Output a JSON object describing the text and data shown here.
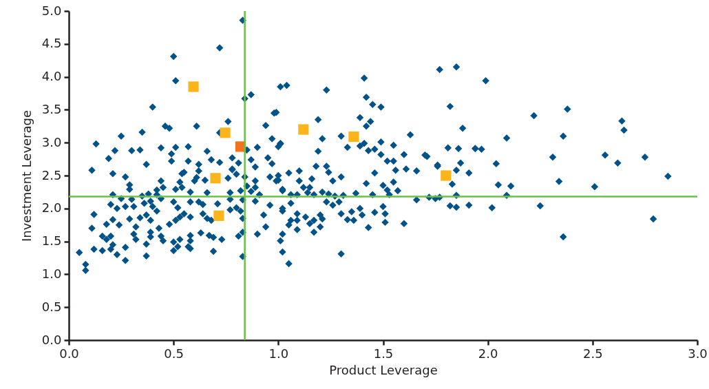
{
  "chart_data": {
    "type": "scatter",
    "xlabel": "Product Leverage",
    "ylabel": "Investment Leverage",
    "xlim": [
      0,
      3
    ],
    "ylim": [
      0,
      5
    ],
    "xticks": [
      {
        "value": 0,
        "label": "0.0"
      },
      {
        "value": 0.5,
        "label": "0.5"
      },
      {
        "value": 1,
        "label": "1.0"
      },
      {
        "value": 1.5,
        "label": "1.5"
      },
      {
        "value": 2,
        "label": "2.0"
      },
      {
        "value": 2.5,
        "label": "2.5"
      },
      {
        "value": 3,
        "label": "3.0"
      }
    ],
    "yticks": [
      {
        "value": 0,
        "label": "0.0"
      },
      {
        "value": 0.5,
        "label": "0.5"
      },
      {
        "value": 1,
        "label": "1.0"
      },
      {
        "value": 1.5,
        "label": "1.5"
      },
      {
        "value": 2,
        "label": "2.0"
      },
      {
        "value": 2.5,
        "label": "2.5"
      },
      {
        "value": 3,
        "label": "3.0"
      },
      {
        "value": 3.5,
        "label": "3.5"
      },
      {
        "value": 4,
        "label": "4.0"
      },
      {
        "value": 4.5,
        "label": "4.5"
      },
      {
        "value": 5,
        "label": "5.0"
      }
    ],
    "grid": false,
    "ref_lines": [
      {
        "axis": "x",
        "value": 0.84,
        "color": "#6abf4b"
      },
      {
        "axis": "y",
        "value": 2.18,
        "color": "#6abf4b"
      }
    ],
    "series": [
      {
        "color": "#005288",
        "marker": "diamond",
        "x": [
          2.86,
          2.79,
          2.75,
          2.64,
          2.65,
          2.62,
          2.56,
          2.51,
          2.38,
          2.36,
          2.31,
          2.34,
          2.36,
          2.22,
          2.25,
          2.11,
          2.09,
          2.09,
          2.04,
          2.05,
          2.02,
          1.99,
          1.94,
          1.91,
          1.91,
          1.88,
          1.85,
          1.77,
          1.81,
          1.82,
          1.76,
          1.77,
          1.71,
          1.66,
          1.6,
          1.63,
          1.55,
          1.56,
          1.52,
          1.49,
          1.41,
          1.42,
          1.45,
          1.39,
          1.44,
          1.42,
          1.3,
          1.33,
          1.39,
          1.41,
          1.43,
          1.46,
          1.49,
          1.49,
          1.55,
          1.52,
          1.6,
          1.7,
          1.61,
          1.66,
          1.86,
          1.94,
          1.97,
          1.76,
          1.87,
          1.85,
          1.83,
          1.42,
          1.46,
          1.5,
          1.55,
          1.57,
          1.45,
          1.53,
          1.72,
          1.75,
          1.85,
          1.82,
          1.85,
          1.5,
          1.51,
          1.46,
          1.51,
          1.43,
          1.3,
          1.39,
          1.4,
          1.35,
          1.33,
          1.36,
          1.3,
          1.23,
          1.18,
          1.24,
          1.26,
          1.1,
          1.05,
          1.1,
          1.16,
          1.12,
          1.15,
          1.14,
          1.09,
          1.06,
          1.17,
          1.21,
          1.24,
          1.27,
          1.31,
          1.37,
          1.23,
          1.26,
          1.29,
          1.3,
          1.2,
          1.21,
          1.17,
          1.2,
          1.17,
          1.15,
          1.13,
          1.09,
          1.09,
          1.09,
          1.06,
          1.05,
          1.02,
          1.02,
          1.01,
          1.02,
          1.05,
          1.06,
          1.02,
          1.0,
          1.0,
          1.0,
          1.01,
          1.01,
          1.04,
          1.23,
          1.19,
          1.21,
          1.19,
          0.99,
          0.83,
          0.72,
          0.5,
          0.51,
          0.4,
          0.87,
          0.84,
          0.98,
          0.46,
          0.48,
          0.61,
          0.76,
          0.94,
          0.35,
          0.25,
          0.13,
          0.22,
          0.3,
          0.34,
          0.44,
          0.51,
          0.57,
          0.66,
          0.49,
          0.72,
          0.85,
          0.9,
          0.97,
          1.01,
          0.19,
          0.37,
          0.49,
          0.57,
          0.62,
          0.68,
          0.72,
          0.78,
          0.81,
          0.87,
          0.95,
          0.97,
          0.89,
          0.11,
          0.21,
          0.27,
          0.55,
          0.62,
          0.78,
          0.29,
          0.29,
          0.44,
          0.45,
          0.42,
          0.54,
          0.53,
          0.6,
          0.61,
          0.65,
          0.66,
          0.58,
          0.51,
          0.54,
          0.76,
          0.78,
          0.8,
          0.84,
          0.85,
          0.82,
          0.77,
          0.83,
          0.77,
          0.89,
          0.89,
          0.87,
          0.91,
          0.89,
          0.96,
          0.99,
          1.02,
          0.21,
          0.25,
          0.3,
          0.35,
          0.38,
          0.42,
          0.44,
          0.39,
          0.36,
          0.31,
          0.2,
          0.23,
          0.27,
          0.4,
          0.42,
          0.5,
          0.52,
          0.58,
          0.62,
          0.64,
          0.71,
          0.55,
          0.53,
          0.58,
          0.64,
          0.66,
          0.68,
          0.77,
          0.8,
          0.82,
          0.83,
          0.12,
          0.21,
          0.18,
          0.24,
          0.29,
          0.34,
          0.37,
          0.39,
          0.32,
          0.43,
          0.48,
          0.51,
          0.11,
          0.16,
          0.18,
          0.2,
          0.21,
          0.31,
          0.32,
          0.39,
          0.39,
          0.44,
          0.45,
          0.5,
          0.53,
          0.58,
          0.58,
          0.63,
          0.67,
          0.69,
          0.73,
          0.81,
          0.83,
          0.52,
          0.57,
          0.58,
          0.5,
          0.37,
          0.27,
          0.12,
          0.16,
          0.2,
          0.23,
          0.37,
          0.27,
          0.69,
          0.83,
          0.05,
          0.08,
          0.08,
          1.02,
          0.93,
          0.94,
          0.9,
          0.96
        ],
        "values": [
          2.49,
          1.84,
          2.78,
          3.33,
          3.19,
          2.69,
          2.81,
          2.33,
          3.51,
          3.1,
          2.78,
          2.41,
          1.57,
          3.41,
          2.04,
          2.34,
          3.07,
          2.2,
          2.68,
          2.36,
          2.01,
          3.94,
          2.91,
          2.54,
          2.05,
          3.22,
          4.15,
          4.11,
          2.92,
          3.55,
          2.64,
          2.17,
          2.79,
          2.13,
          1.77,
          3.12,
          2.72,
          2.58,
          2.28,
          3.54,
          3.98,
          3.69,
          3.58,
          3.38,
          3.32,
          3.25,
          3.1,
          2.93,
          2.95,
          2.99,
          2.88,
          2.9,
          3.01,
          2.82,
          2.96,
          2.72,
          2.82,
          2.81,
          2.6,
          2.57,
          2.91,
          2.91,
          2.9,
          2.66,
          2.69,
          2.58,
          2.37,
          2.38,
          2.54,
          2.35,
          2.4,
          2.27,
          2.21,
          2.21,
          2.17,
          2.15,
          2.2,
          2.04,
          2.02,
          2.03,
          1.92,
          1.94,
          1.79,
          1.71,
          1.31,
          2.0,
          1.9,
          1.95,
          1.83,
          1.82,
          2.48,
          2.64,
          2.64,
          2.55,
          2.42,
          2.57,
          2.54,
          2.42,
          2.45,
          2.32,
          2.32,
          2.24,
          2.21,
          2.21,
          2.21,
          2.25,
          2.22,
          2.19,
          2.2,
          2.23,
          2.1,
          2.05,
          2.1,
          1.92,
          1.9,
          1.84,
          1.82,
          1.72,
          1.64,
          1.77,
          1.87,
          1.92,
          1.82,
          1.68,
          1.82,
          1.75,
          1.96,
          1.61,
          1.51,
          1.34,
          1.16,
          2.08,
          2.27,
          2.43,
          2.5,
          2.94,
          2.99,
          3.85,
          3.87,
          3.8,
          3.35,
          3.06,
          2.87,
          3.46,
          4.86,
          4.44,
          4.31,
          3.94,
          3.54,
          3.73,
          3.67,
          3.45,
          3.25,
          3.22,
          3.25,
          3.32,
          3.26,
          3.16,
          3.1,
          2.98,
          2.88,
          2.88,
          2.89,
          2.92,
          2.93,
          2.94,
          2.87,
          2.83,
          3.15,
          2.89,
          2.93,
          3.06,
          2.98,
          2.76,
          2.67,
          2.72,
          2.72,
          2.67,
          2.74,
          2.7,
          2.77,
          2.69,
          2.74,
          2.77,
          2.68,
          2.63,
          2.58,
          2.53,
          2.48,
          2.55,
          2.57,
          2.59,
          2.36,
          2.29,
          2.42,
          2.32,
          2.28,
          2.53,
          2.4,
          2.42,
          2.47,
          2.43,
          2.24,
          2.25,
          2.29,
          2.32,
          2.46,
          2.6,
          2.52,
          2.48,
          2.34,
          2.27,
          2.24,
          2.13,
          2.14,
          2.42,
          2.32,
          2.26,
          2.21,
          2.11,
          2.48,
          2.42,
          2.29,
          2.21,
          2.15,
          2.14,
          2.19,
          2.22,
          2.21,
          2.15,
          2.11,
          2.08,
          2.03,
          2.06,
          2.0,
          2.03,
          2.03,
          1.96,
          2.1,
          2.01,
          2.1,
          2.1,
          2.06,
          2.07,
          1.92,
          1.87,
          1.87,
          1.92,
          1.85,
          1.82,
          1.98,
          2.01,
          1.96,
          1.85,
          1.91,
          1.83,
          1.76,
          1.75,
          1.84,
          1.86,
          1.9,
          1.82,
          1.72,
          1.7,
          1.76,
          1.82,
          1.7,
          1.58,
          1.53,
          1.58,
          1.45,
          1.61,
          1.53,
          1.64,
          1.57,
          1.58,
          1.51,
          1.49,
          1.53,
          1.59,
          1.51,
          1.63,
          1.59,
          1.56,
          1.53,
          1.58,
          1.64,
          1.42,
          1.42,
          1.39,
          1.36,
          1.46,
          1.41,
          1.38,
          1.36,
          1.38,
          1.3,
          1.28,
          1.21,
          1.35,
          1.27,
          1.33,
          1.15,
          1.06,
          2.0,
          1.9,
          1.72,
          1.61,
          2.05
        ]
      },
      {
        "color": "#fbb41a",
        "marker": "square",
        "x": [
          0.595,
          0.746,
          0.7,
          0.716,
          1.12,
          1.36,
          1.8
        ],
        "values": [
          3.85,
          3.15,
          2.46,
          1.89,
          3.2,
          3.09,
          2.5
        ]
      },
      {
        "color": "#f47120",
        "marker": "square",
        "x": [
          0.82
        ],
        "values": [
          2.94
        ]
      }
    ]
  }
}
